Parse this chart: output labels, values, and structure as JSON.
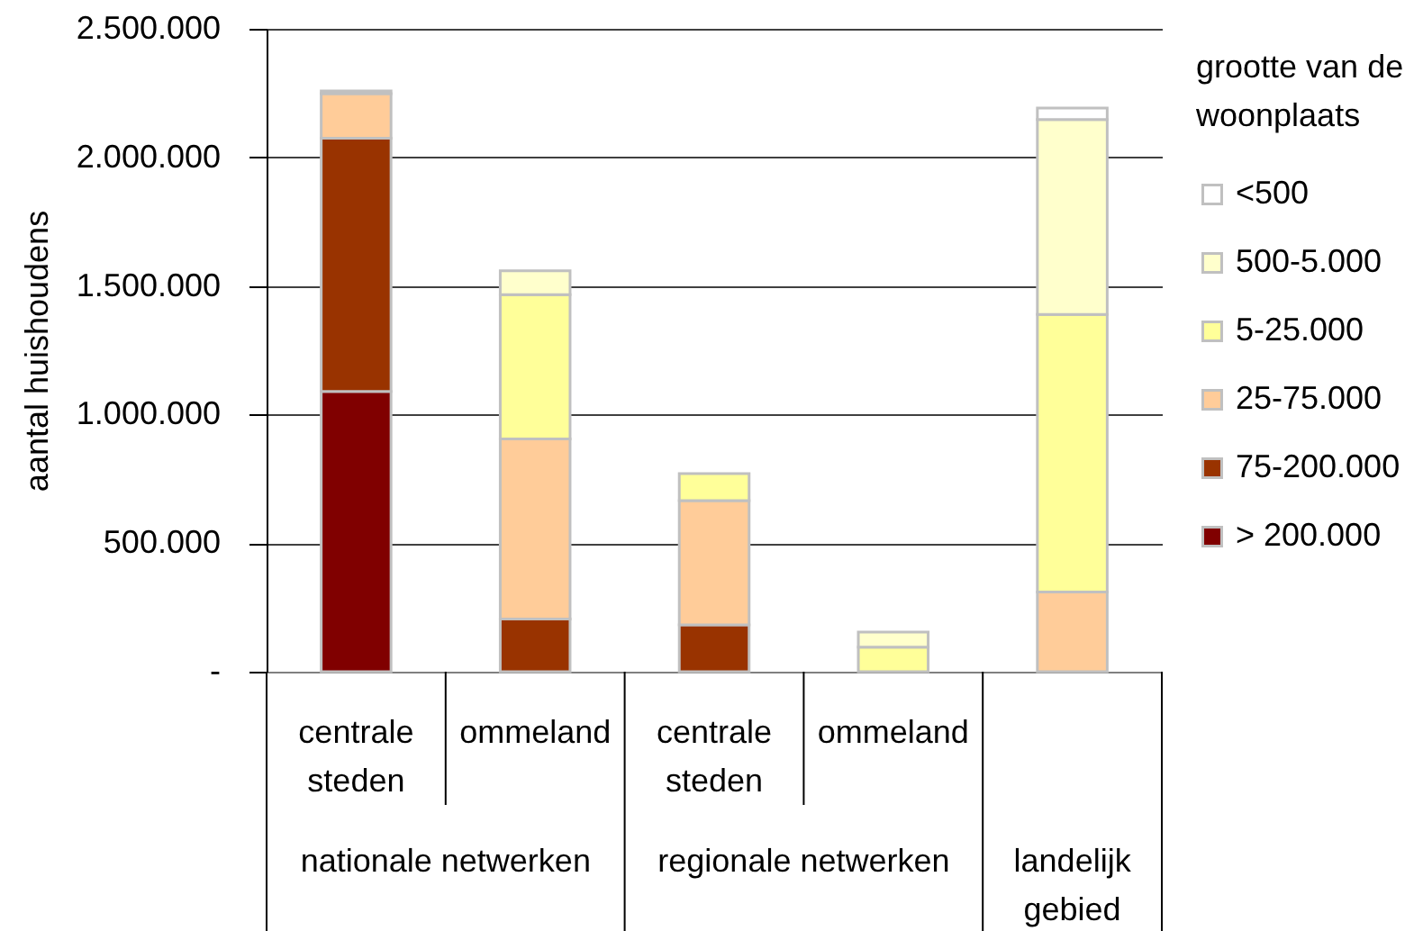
{
  "chart_data": {
    "type": "bar",
    "stacked": true,
    "categories": [
      "centrale steden",
      "ommeland",
      "centrale steden",
      "ommeland",
      null
    ],
    "series": [
      {
        "name": "> 200.000",
        "color": "#800000",
        "values": [
          1090000,
          null,
          null,
          null,
          null
        ]
      },
      {
        "name": "75-200.000",
        "color": "#993300",
        "values": [
          985000,
          205000,
          182000,
          null,
          null
        ]
      },
      {
        "name": "25-75.000",
        "color": "#ffcc99",
        "values": [
          173000,
          700000,
          483000,
          null,
          310000
        ]
      },
      {
        "name": "5-25.000",
        "color": "#ffff99",
        "values": [
          10000,
          561000,
          105000,
          95000,
          1079000
        ]
      },
      {
        "name": "500-5.000",
        "color": "#ffffcc",
        "values": [
          null,
          93000,
          null,
          59000,
          758000
        ]
      },
      {
        "name": "<500",
        "color": "#ffffff",
        "values": [
          null,
          null,
          null,
          null,
          45000
        ]
      }
    ],
    "ylabel": "aantal huishoudens",
    "legend_title": "grootte van de woonplaats",
    "ylim": [
      0,
      2500000
    ],
    "yticks": [
      {
        "value": 0,
        "label": "-"
      },
      {
        "value": 500000,
        "label": "500.000"
      },
      {
        "value": 1000000,
        "label": "1.000.000"
      },
      {
        "value": 1500000,
        "label": "1.500.000"
      },
      {
        "value": 2000000,
        "label": "2.000.000"
      },
      {
        "value": 2500000,
        "label": "2.500.000"
      }
    ],
    "annotations": [
      "nationale netwerken",
      "regionale netwerken",
      "landelijk gebied"
    ],
    "grid": "y",
    "legend": "right"
  }
}
